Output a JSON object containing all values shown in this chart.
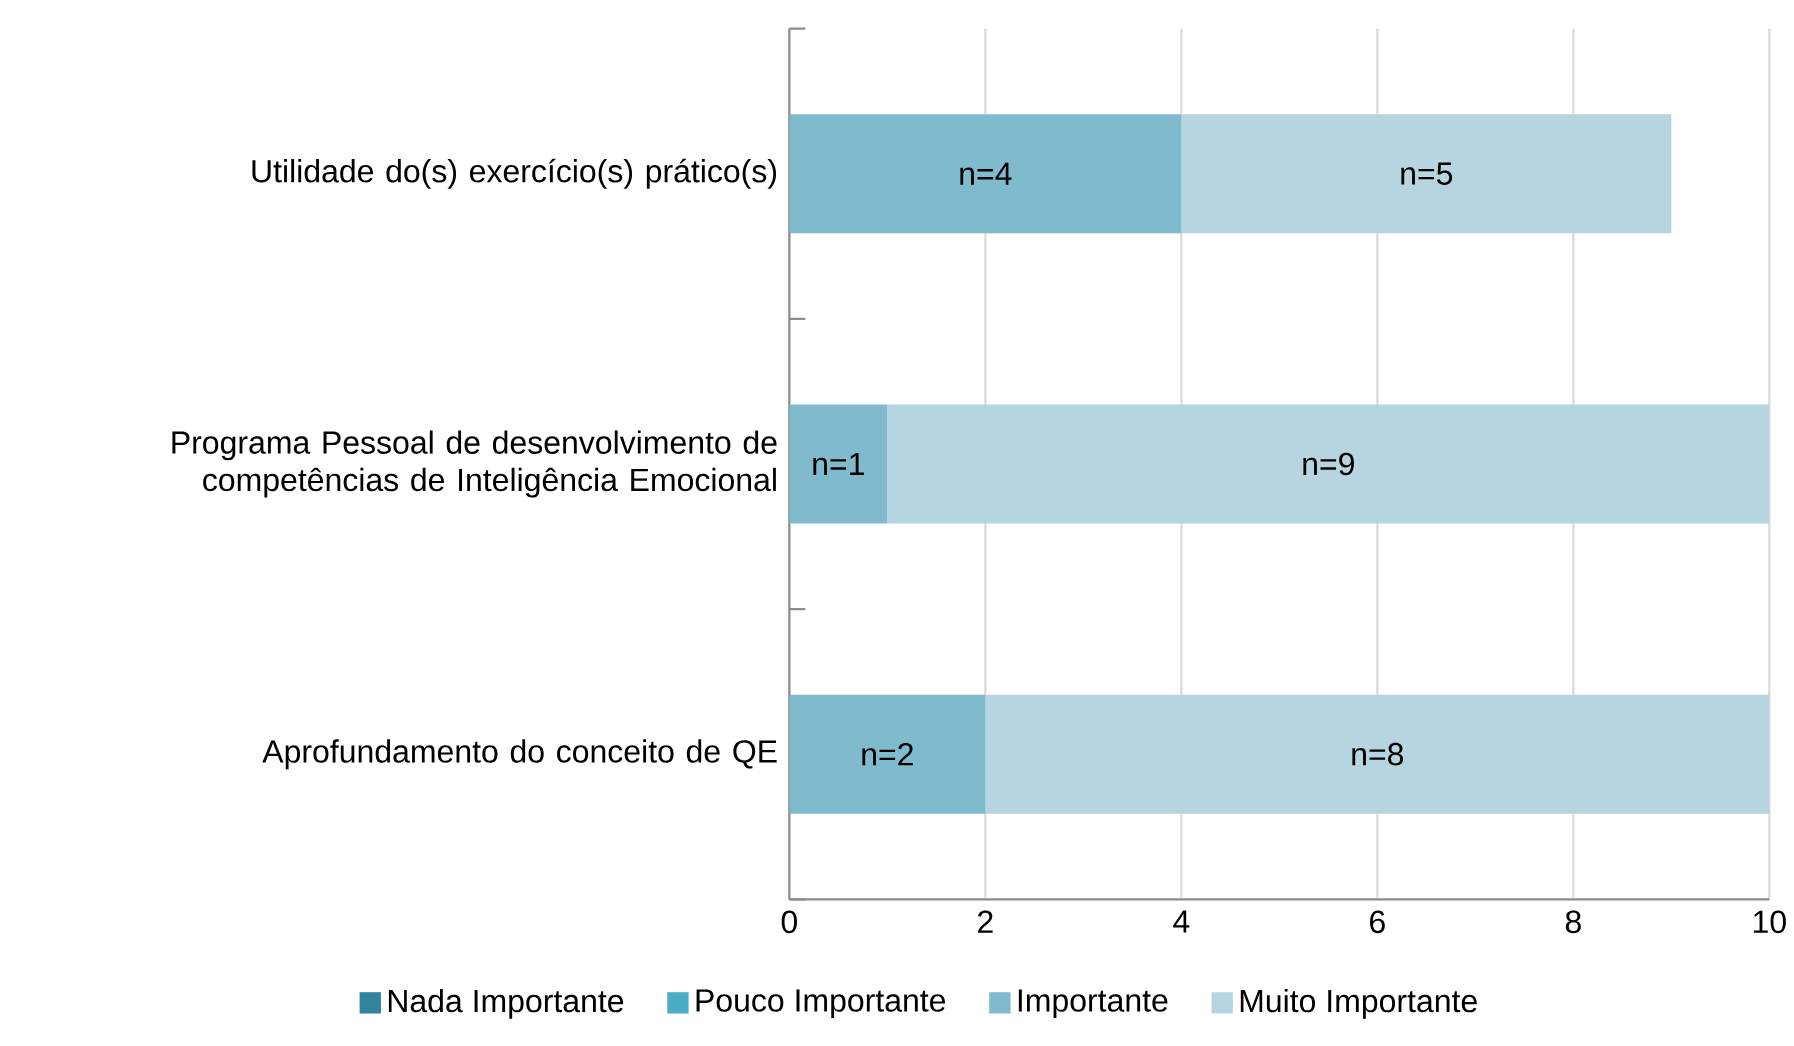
{
  "chart_data": {
    "type": "bar",
    "orientation": "horizontal",
    "stacked": true,
    "categories": [
      "Utilidade do(s) exercício(s) prático(s)",
      "Programa Pessoal de desenvolvimento de competências de Inteligência Emocional",
      "Aprofundamento do conceito de QE"
    ],
    "series": [
      {
        "name": "Nada Importante",
        "color": "#31849b",
        "values": [
          0,
          0,
          0
        ]
      },
      {
        "name": "Pouco Importante",
        "color": "#4bacc6",
        "values": [
          0,
          0,
          0
        ]
      },
      {
        "name": "Importante",
        "color": "#7fbacd",
        "values": [
          4,
          1,
          2
        ],
        "value_labels": [
          "n=4",
          "n=1",
          "n=2"
        ]
      },
      {
        "name": "Muito Importante",
        "color": "#b7d5e0",
        "values": [
          5,
          9,
          8
        ],
        "value_labels": [
          "n=5",
          "n=9",
          "n=8"
        ]
      }
    ],
    "xlim": [
      0,
      10
    ],
    "xticks": [
      0,
      2,
      4,
      6,
      8,
      10
    ],
    "grid": "x",
    "legend": "bottom"
  }
}
